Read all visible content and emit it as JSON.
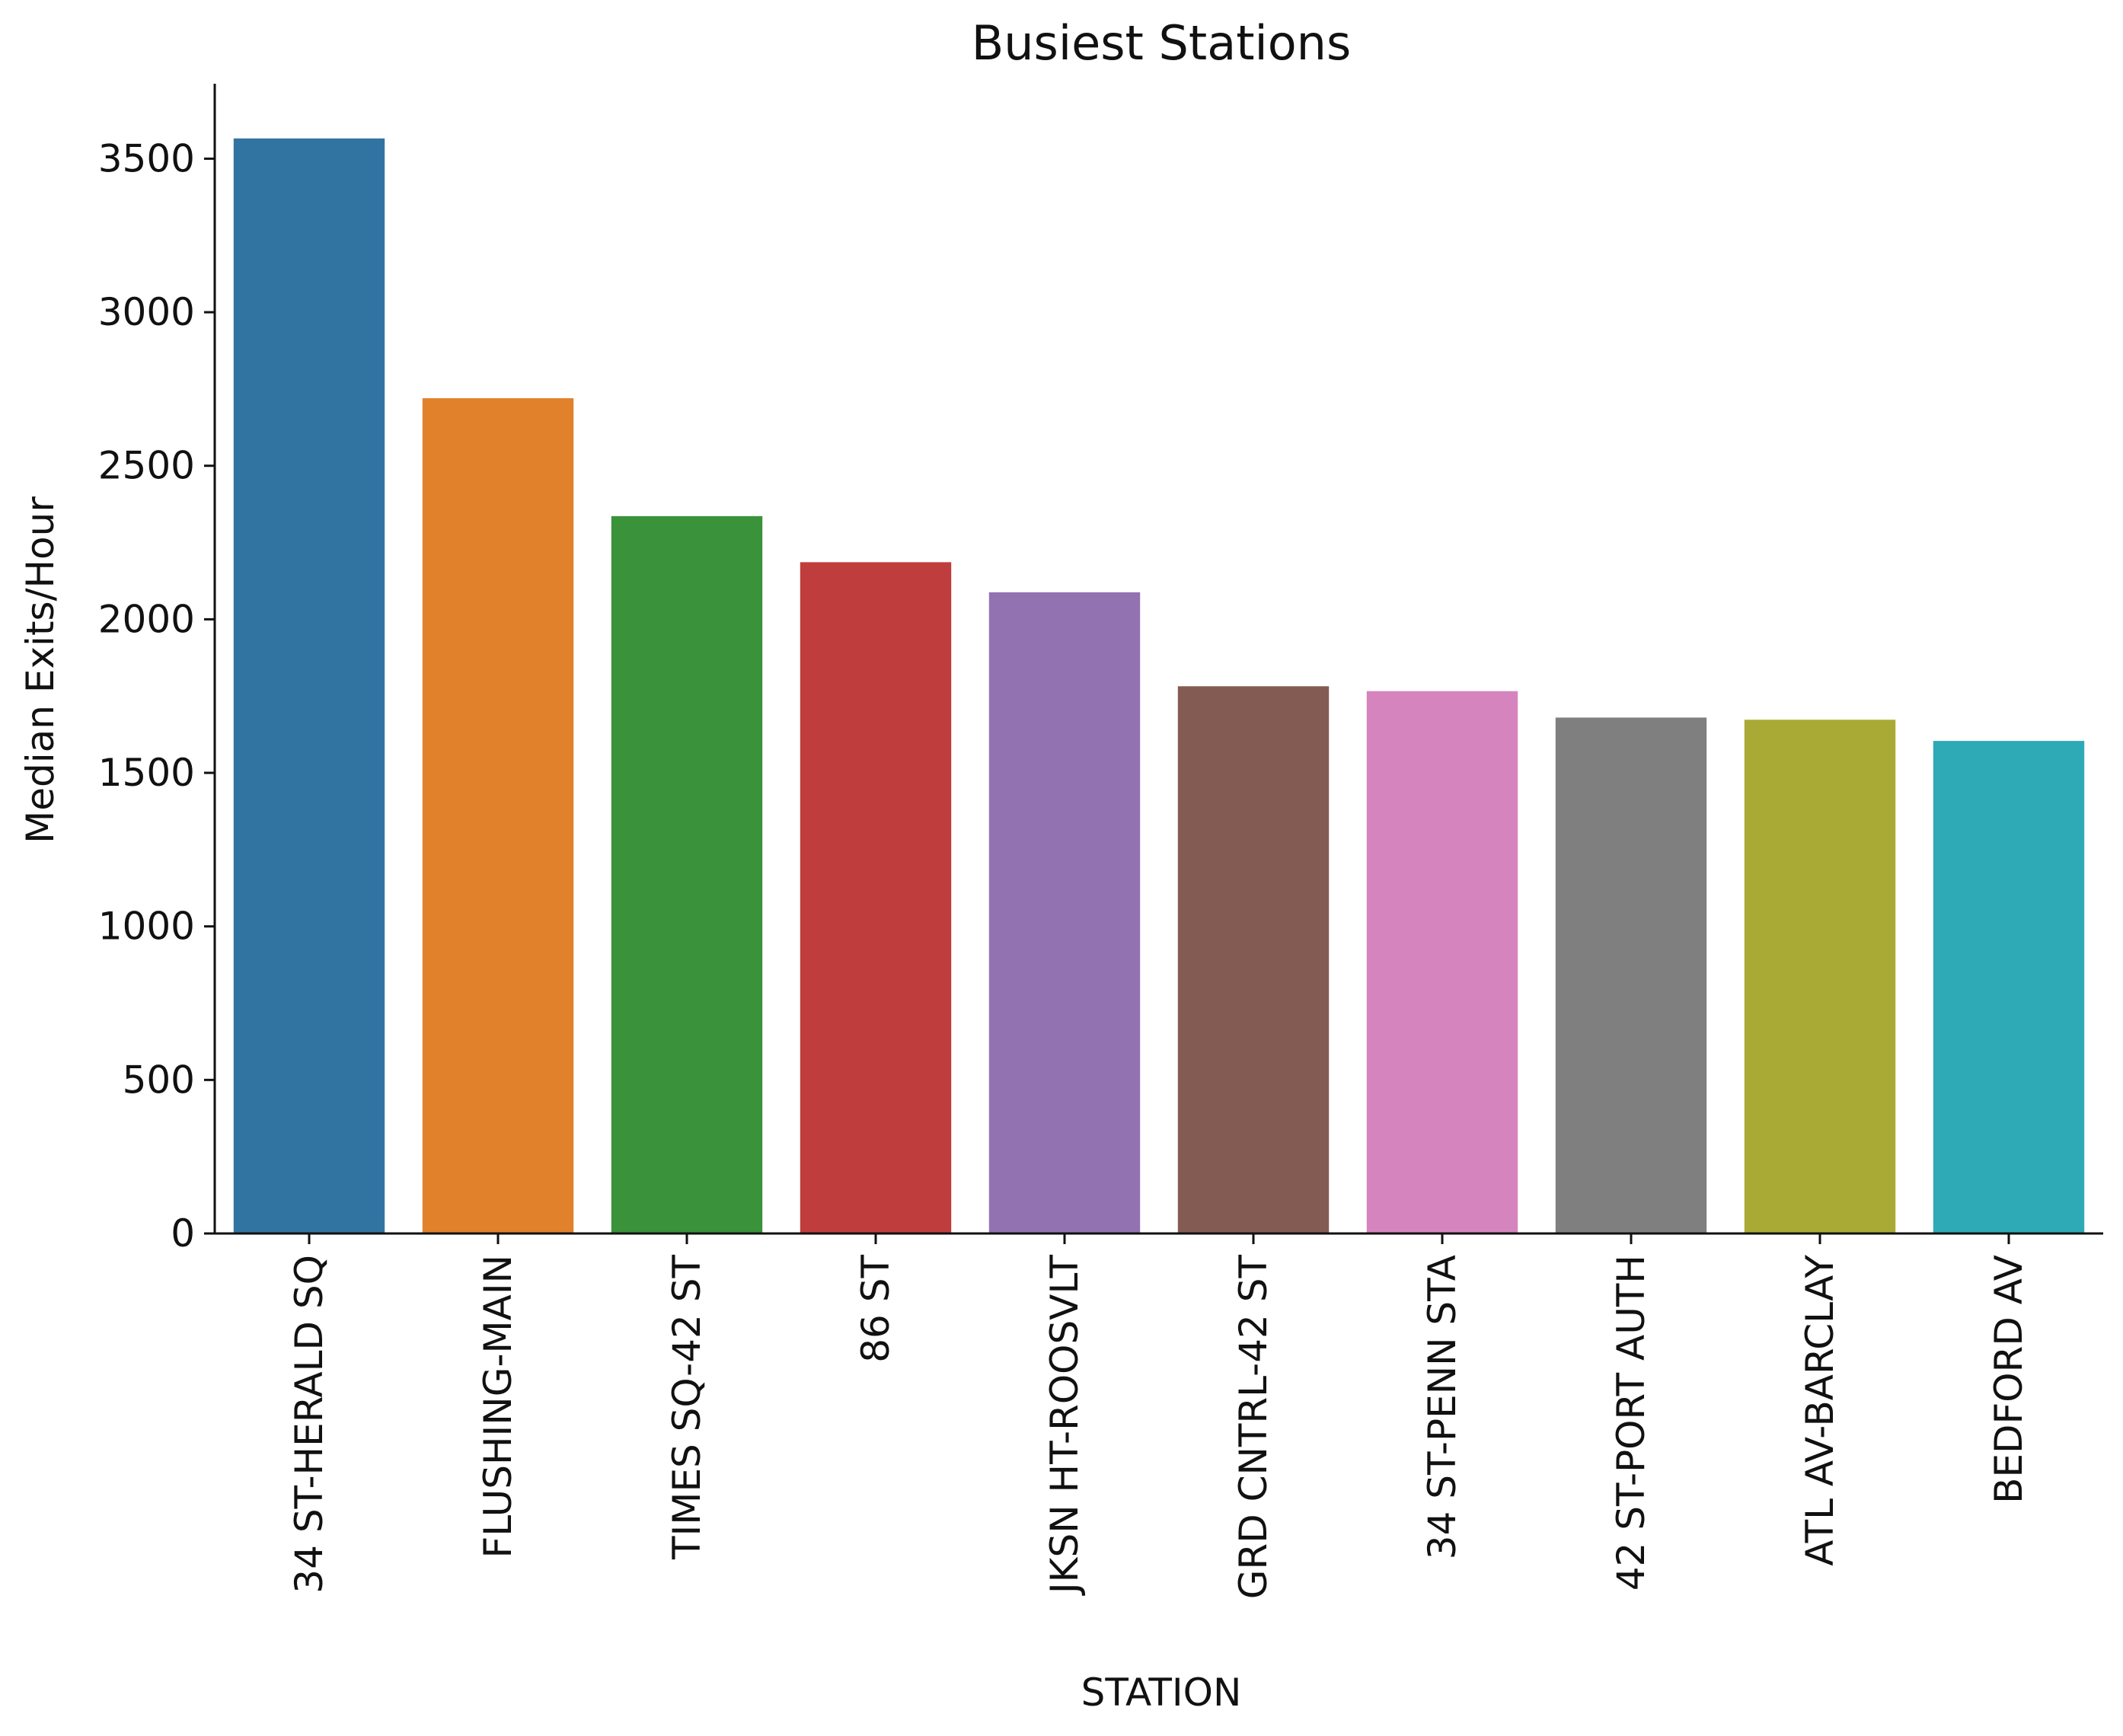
{
  "chart_data": {
    "type": "bar",
    "title": "Busiest Stations",
    "xlabel": "STATION",
    "ylabel": "Median Exits/Hour",
    "categories": [
      "34 ST-HERALD SQ",
      "FLUSHING-MAIN",
      "TIMES SQ-42 ST",
      "86 ST",
      "JKSN HT-ROOSVLT",
      "GRD CNTRL-42 ST",
      "34 ST-PENN STA",
      "42 ST-PORT AUTH",
      "ATL AV-BARCLAY",
      "BEDFORD AV"
    ],
    "values": [
      3566,
      2720,
      2336,
      2186,
      2088,
      1782,
      1766,
      1680,
      1673,
      1604
    ],
    "colors": [
      "#3274a1",
      "#e1812c",
      "#3a923a",
      "#c03d3e",
      "#9372b2",
      "#845b53",
      "#d684bd",
      "#7f7f7f",
      "#a9aa35",
      "#2eaab7"
    ],
    "yticks": [
      0,
      500,
      1000,
      1500,
      2000,
      2500,
      3000,
      3500
    ],
    "ylim": [
      0,
      3744
    ],
    "grid": false,
    "legend": "none"
  }
}
